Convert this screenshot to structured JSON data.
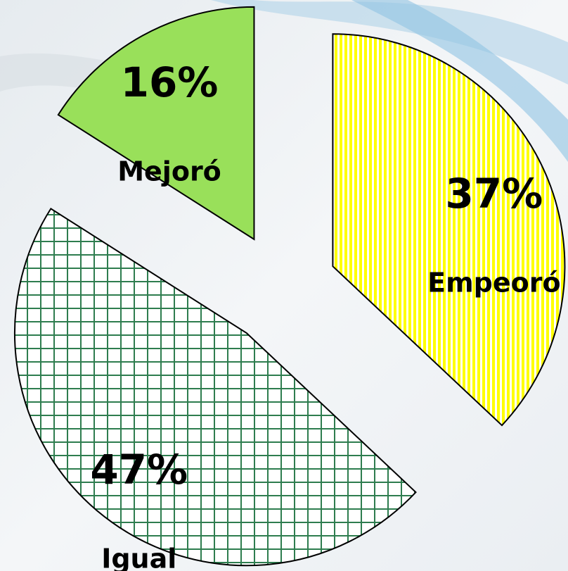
{
  "chart_data": {
    "type": "pie",
    "categories": [
      "Empeoró",
      "Igual",
      "Mejoró"
    ],
    "values": [
      37,
      47,
      16
    ],
    "value_labels": [
      "37%",
      "47%",
      "16%"
    ],
    "colors": [
      "#ffff00",
      "#2e7d4f",
      "#99e05a"
    ],
    "patterns": [
      "vertical-stripes",
      "grid",
      "solid"
    ],
    "exploded": true
  }
}
